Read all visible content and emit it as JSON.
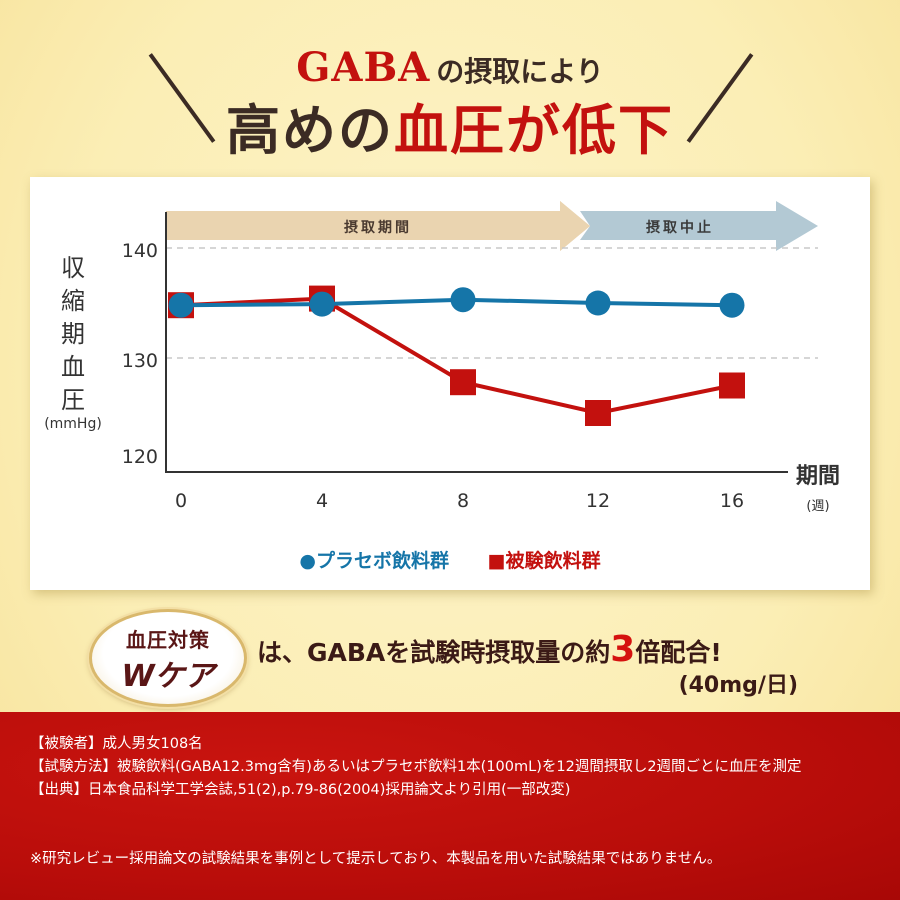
{
  "headline": {
    "gaba": "GABA",
    "line1_rest": "の摂取により",
    "line2_pre": "高めの",
    "line2_red": "血圧が低下"
  },
  "chart_data": {
    "type": "line",
    "title": "GABAの摂取により高めの血圧が低下",
    "xlabel": "期間",
    "xlabel_unit": "(週)",
    "ylabel": "収縮期血圧",
    "ylabel_unit": "(mmHg)",
    "x": [
      0,
      4,
      8,
      12,
      16
    ],
    "x_tick_labels": [
      "0",
      "4",
      "8",
      "12",
      "16"
    ],
    "y_ticks": [
      120,
      130,
      140
    ],
    "ylim": [
      118.7,
      143.3
    ],
    "grid": "dashed horizontal at 130 and 140",
    "series": [
      {
        "name": "プラセボ飲料群",
        "marker": "circle",
        "color": "#1575a8",
        "values": [
          134.8,
          134.9,
          135.3,
          135.0,
          134.8
        ]
      },
      {
        "name": "被験飲料群",
        "marker": "square",
        "color": "#c3110e",
        "values": [
          134.8,
          135.4,
          127.8,
          125.0,
          127.5
        ]
      }
    ],
    "annotations": [
      {
        "label": "摂取期間",
        "from_week": 0,
        "to_week": 12,
        "color": "#ead4b0"
      },
      {
        "label": "摂取中止",
        "from_week": 12,
        "to_week": 16,
        "color": "#b3c9d4"
      }
    ],
    "legend_position": "bottom"
  },
  "legend": {
    "placebo": "●プラセボ飲料群",
    "test": "■被験飲料群"
  },
  "badge": {
    "line1": "血圧対策",
    "line2": "Wケア"
  },
  "claim": {
    "pre": "は、GABAを試験時摂取量の約",
    "number": "3",
    "post": "倍配合!",
    "sub": "(40mg/日)"
  },
  "notes": [
    "【被験者】成人男女108名",
    "【試験方法】被験飲料(GABA12.3mg含有)あるいはプラセボ飲料1本(100mL)を12週間摂取し2週間ごとに血圧を測定",
    "【出典】日本食品科学工学会誌,51(2),p.79-86(2004)採用論文より引用(一部改変)"
  ],
  "disclaimer": "※研究レビュー採用論文の試験結果を事例として提示しており、本製品を用いた試験結果ではありません。",
  "colors": {
    "accent_red": "#c3110e",
    "placebo_blue": "#1575a8",
    "text_dark": "#3b2b24",
    "background": "#fbeeb5"
  }
}
